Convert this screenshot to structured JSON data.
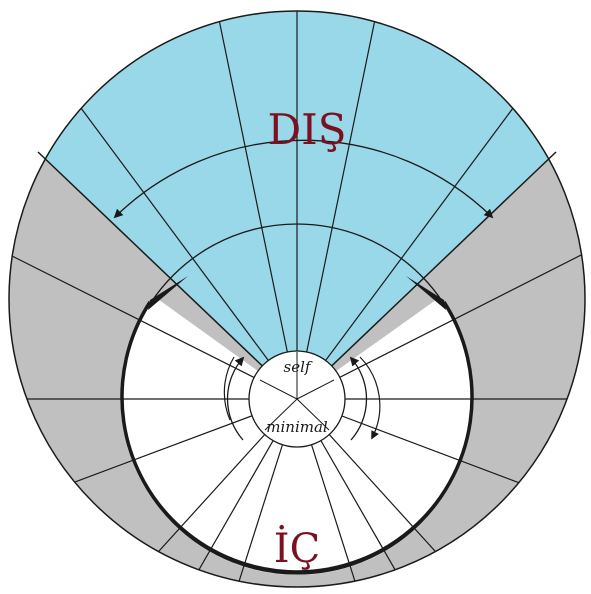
{
  "labels": {
    "outer": "DIŞ",
    "inner": "İÇ",
    "self": "self",
    "minimal": "minimal"
  },
  "colors": {
    "outer_region": "#99d8e8",
    "side_region": "#c0c0c0",
    "inner_region": "#ffffff",
    "label_text": "#7a1020",
    "lines": "#1a1a1a"
  },
  "icons": {
    "outer_arc_arrow": "double-headed-arc-arrow",
    "self_cycle_arrows": "circular-arrows"
  }
}
